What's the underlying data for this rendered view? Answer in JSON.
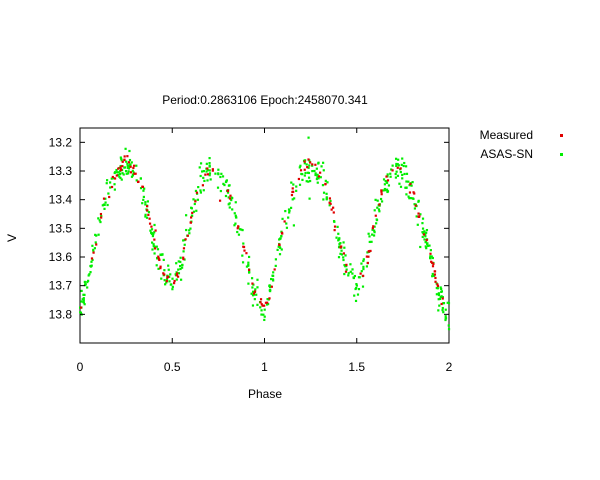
{
  "chart_data": {
    "type": "scatter",
    "title": "Period:0.2863106 Epoch:2458070.341",
    "xlabel": "Phase",
    "ylabel": "V",
    "xlim": [
      0,
      2
    ],
    "ylim": [
      13.9,
      13.15
    ],
    "y_axis_inverted": true,
    "x_ticks": [
      "0",
      "0.5",
      "1",
      "1.5",
      "2"
    ],
    "y_ticks": [
      "13.2",
      "13.3",
      "13.4",
      "13.5",
      "13.6",
      "13.7",
      "13.8"
    ],
    "grid": false,
    "legend_position": "right-outside-top",
    "series": [
      {
        "name": "Measured",
        "color": "#e00000",
        "phase_shape": [
          [
            0.0,
            13.79
          ],
          [
            0.05,
            13.66
          ],
          [
            0.1,
            13.5
          ],
          [
            0.15,
            13.37
          ],
          [
            0.2,
            13.3
          ],
          [
            0.25,
            13.27
          ],
          [
            0.3,
            13.3
          ],
          [
            0.35,
            13.39
          ],
          [
            0.4,
            13.54
          ],
          [
            0.45,
            13.66
          ],
          [
            0.5,
            13.7
          ],
          [
            0.55,
            13.63
          ],
          [
            0.6,
            13.47
          ],
          [
            0.65,
            13.35
          ],
          [
            0.7,
            13.29
          ],
          [
            0.75,
            13.3
          ],
          [
            0.8,
            13.37
          ],
          [
            0.85,
            13.48
          ],
          [
            0.9,
            13.6
          ],
          [
            0.95,
            13.73
          ],
          [
            1.0,
            13.79
          ]
        ],
        "repeats_every": 1
      },
      {
        "name": "ASAS-SN",
        "color": "#00ee00",
        "phase_shape": [
          [
            0.0,
            13.8
          ],
          [
            0.05,
            13.66
          ],
          [
            0.1,
            13.5
          ],
          [
            0.15,
            13.38
          ],
          [
            0.2,
            13.31
          ],
          [
            0.25,
            13.28
          ],
          [
            0.3,
            13.31
          ],
          [
            0.35,
            13.4
          ],
          [
            0.4,
            13.54
          ],
          [
            0.45,
            13.65
          ],
          [
            0.5,
            13.69
          ],
          [
            0.55,
            13.62
          ],
          [
            0.6,
            13.47
          ],
          [
            0.65,
            13.35
          ],
          [
            0.7,
            13.29
          ],
          [
            0.75,
            13.3
          ],
          [
            0.8,
            13.37
          ],
          [
            0.85,
            13.48
          ],
          [
            0.9,
            13.6
          ],
          [
            0.95,
            13.74
          ],
          [
            1.0,
            13.8
          ]
        ],
        "repeats_every": 1
      }
    ]
  }
}
